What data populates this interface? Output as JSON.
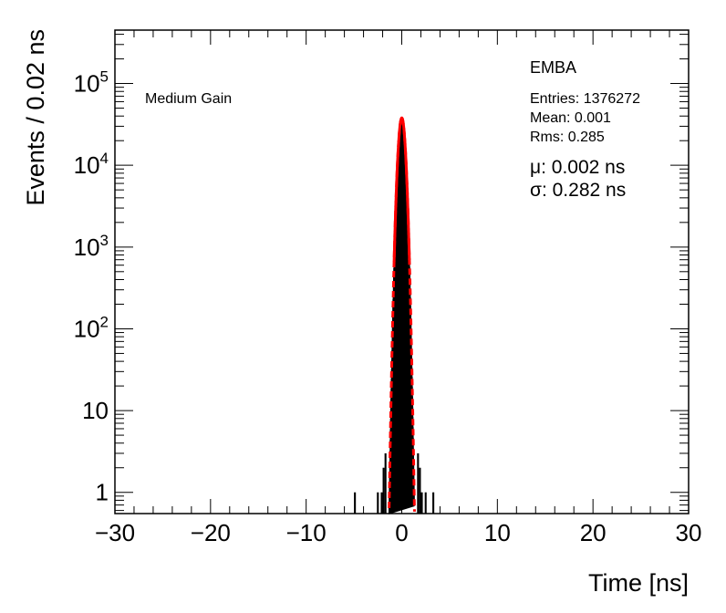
{
  "chart_data": {
    "type": "histogram",
    "title": "EMBA",
    "label": "Medium Gain",
    "xlabel": "Time [ns]",
    "ylabel": "Events / 0.02 ns",
    "xlim": [
      -30,
      30
    ],
    "ylim": [
      0.55,
      450000
    ],
    "yscale": "log",
    "bin_width": 0.02,
    "x_ticks": [
      -30,
      -20,
      -10,
      0,
      10,
      20,
      30
    ],
    "x_tick_labels": [
      "−30",
      "−20",
      "−10",
      "0",
      "10",
      "20",
      "30"
    ],
    "y_ticks": [
      1,
      10,
      100,
      1000,
      10000,
      100000
    ],
    "y_tick_labels": [
      {
        "base": "1",
        "exp": ""
      },
      {
        "base": "10",
        "exp": ""
      },
      {
        "base": "10",
        "exp": "2"
      },
      {
        "base": "10",
        "exp": "3"
      },
      {
        "base": "10",
        "exp": "4"
      },
      {
        "base": "10",
        "exp": "5"
      }
    ],
    "stats": {
      "entries_label": "Entries: 1376272",
      "mean_label": "Mean: 0.001",
      "rms_label": "Rms: 0.285",
      "entries": 1376272,
      "mean": 0.001,
      "rms": 0.285
    },
    "fit": {
      "mu_label": "μ: 0.002 ns",
      "sigma_label": "σ: 0.282 ns",
      "mu": 0.002,
      "sigma": 0.282,
      "peak": 38000,
      "color": "#ff0000"
    },
    "histogram_color": "#000000",
    "outlier_bins": [
      {
        "x": -5.0,
        "y": 1
      },
      {
        "x": -2.6,
        "y": 1
      },
      {
        "x": -2.2,
        "y": 1
      },
      {
        "x": -2.0,
        "y": 2
      },
      {
        "x": -1.8,
        "y": 3
      },
      {
        "x": 1.6,
        "y": 3
      },
      {
        "x": 1.8,
        "y": 2
      },
      {
        "x": 2.0,
        "y": 1
      },
      {
        "x": 2.4,
        "y": 1
      },
      {
        "x": 3.2,
        "y": 1
      }
    ]
  }
}
